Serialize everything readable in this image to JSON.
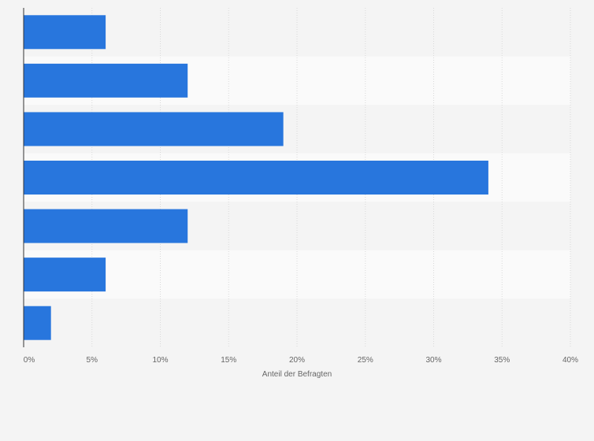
{
  "chart_data": {
    "type": "bar",
    "orientation": "horizontal",
    "categories": [
      "",
      "",
      "",
      "",
      "",
      "",
      ""
    ],
    "values": [
      6,
      12,
      19,
      34,
      12,
      6,
      2
    ],
    "xlabel": "Anteil der Befragten",
    "ylabel": "",
    "xlim": [
      0,
      40
    ],
    "x_ticks": [
      "0%",
      "5%",
      "10%",
      "15%",
      "20%",
      "25%",
      "30%",
      "35%",
      "40%"
    ],
    "grid": true,
    "bar_color": "#2876dd"
  }
}
